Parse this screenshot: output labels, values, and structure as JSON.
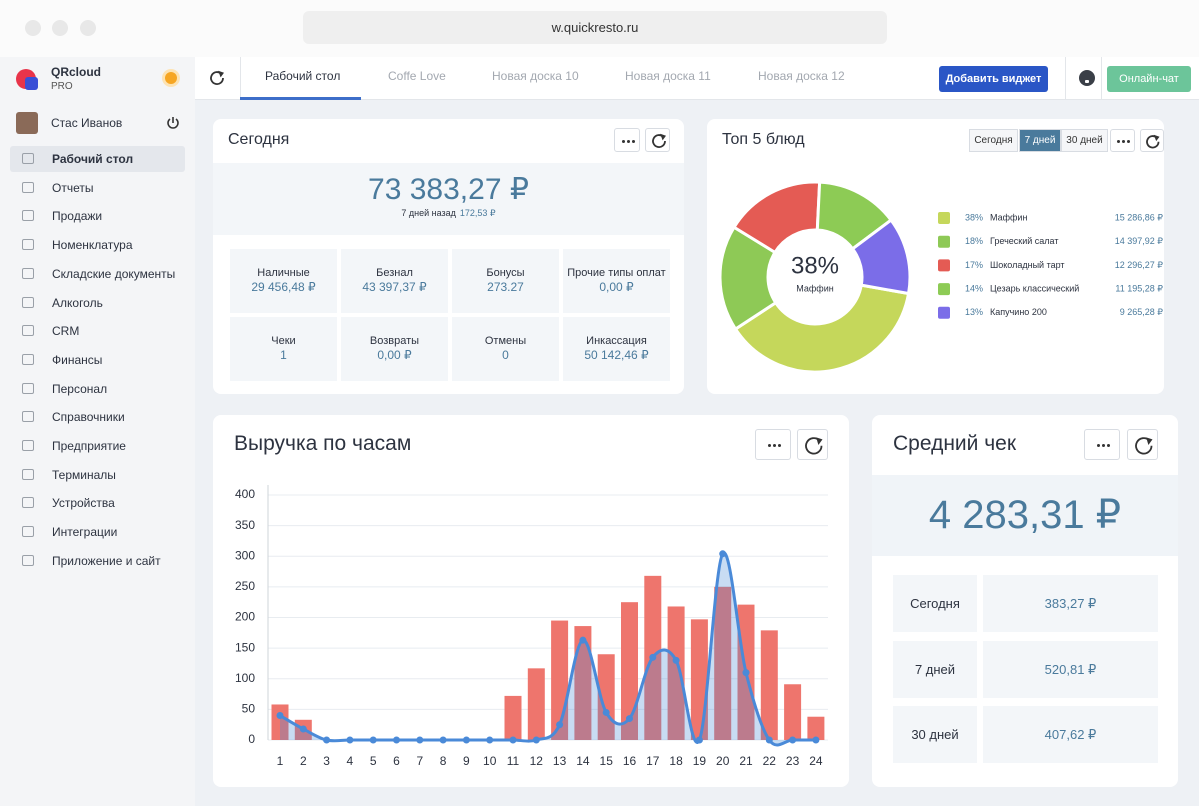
{
  "browser": {
    "url": "w.quickresto.ru"
  },
  "sidebar": {
    "brand": "QRcloud",
    "plan": "PRO",
    "user": "Стас Иванов",
    "menu": [
      "Рабочий стол",
      "Отчеты",
      "Продажи",
      "Номенклатура",
      "Складские документы",
      "Алкоголь",
      "CRM",
      "Финансы",
      "Персонал",
      "Справочники",
      "Предприятие",
      "Терминалы",
      "Устройства",
      "Интеграции",
      "Приложение и сайт"
    ]
  },
  "toolbar": {
    "tabs": [
      "Рабочий стол",
      "Coffe Love",
      "Новая доска 10",
      "Новая доска 11",
      "Новая доска 12"
    ],
    "add_widget": "Добавить виджет",
    "chat": "Онлайн-чат"
  },
  "today": {
    "title": "Сегодня",
    "total": "73 383,27 ₽",
    "compare_label": "7 дней назад",
    "compare_value": "172,53 ₽",
    "cells": [
      {
        "label": "Наличные",
        "value": "29 456,48 ₽"
      },
      {
        "label": "Безнал",
        "value": "43 397,37 ₽"
      },
      {
        "label": "Бонусы",
        "value": "273.27"
      },
      {
        "label": "Прочие типы оплат",
        "value": "0,00 ₽"
      },
      {
        "label": "Чеки",
        "value": "1"
      },
      {
        "label": "Возвраты",
        "value": "0,00 ₽"
      },
      {
        "label": "Отмены",
        "value": "0"
      },
      {
        "label": "Инкассация",
        "value": "50 142,46 ₽"
      }
    ]
  },
  "average_check": {
    "title": "Средний чек",
    "value": "4 283,31 ₽",
    "rows": [
      {
        "label": "Сегодня",
        "value": "383,27 ₽"
      },
      {
        "label": "7 дней",
        "value": "520,81 ₽"
      },
      {
        "label": "30 дней",
        "value": "407,62 ₽"
      }
    ]
  },
  "chart_data": [
    {
      "type": "pie",
      "title": "Топ 5 блюд",
      "periods": [
        "Сегодня",
        "7 дней",
        "30 дней"
      ],
      "selected_period": 1,
      "categories": [
        "Маффин",
        "Греческий салат",
        "Шоколадный тарт",
        "Цезарь классический",
        "Капучино 200"
      ],
      "values": [
        38,
        18,
        17,
        14,
        13
      ],
      "value_labels": [
        "38%",
        "18%",
        "17%",
        "14%",
        "13%"
      ],
      "colors": [
        "#c5d75b",
        "#8ec956",
        "#e45b54",
        "#8dcb55",
        "#7b6de8"
      ],
      "amounts": [
        "15 286,86 ₽",
        "14 397,92 ₽",
        "12 296,27 ₽",
        "11 195,28 ₽",
        "9 265,28 ₽"
      ]
    },
    {
      "type": "combo",
      "title": "Выручка по часам",
      "categories": [
        "1",
        "2",
        "3",
        "4",
        "5",
        "6",
        "7",
        "8",
        "9",
        "10",
        "11",
        "12",
        "13",
        "14",
        "15",
        "16",
        "17",
        "18",
        "19",
        "20",
        "21",
        "22",
        "23",
        "24"
      ],
      "series": [
        {
          "type": "bar",
          "color": "#ee756d",
          "values": [
            58,
            33,
            0,
            0,
            0,
            0,
            0,
            0,
            0,
            0,
            72,
            117,
            195,
            186,
            140,
            225,
            268,
            218,
            197,
            250,
            221,
            179,
            91,
            38
          ]
        },
        {
          "type": "line",
          "color": "#4a8ad8",
          "values": [
            40,
            18,
            0,
            0,
            0,
            0,
            0,
            0,
            0,
            0,
            0,
            0,
            25,
            163,
            45,
            35,
            135,
            130,
            0,
            304,
            110,
            0,
            0,
            0
          ]
        }
      ],
      "ylim": [
        0,
        400
      ],
      "yticks": [
        0,
        50,
        100,
        150,
        200,
        250,
        300,
        350,
        400
      ],
      "grid": true
    }
  ]
}
